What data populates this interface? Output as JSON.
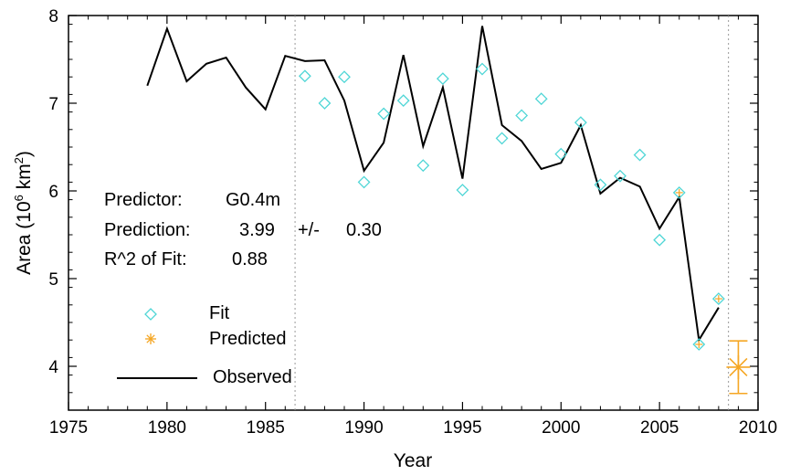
{
  "chart_data": {
    "type": "line",
    "xlabel": "Year",
    "ylabel": "Area (10",
    "ylabel_sup": "6",
    "ylabel_unit": " km",
    "ylabel_sup2": "2",
    "ylabel_close": ")",
    "xlim": [
      1975,
      2010
    ],
    "ylim": [
      3.5,
      8
    ],
    "xticks": [
      1975,
      1980,
      1985,
      1990,
      1995,
      2000,
      2005,
      2010
    ],
    "yticks": [
      4,
      5,
      6,
      7,
      8
    ],
    "vlines": [
      1986.5,
      2008.5
    ],
    "grid": false,
    "series": [
      {
        "name": "Observed",
        "kind": "line",
        "color": "#000000",
        "x": [
          1979,
          1980,
          1981,
          1982,
          1983,
          1984,
          1985,
          1986,
          1987,
          1988,
          1989,
          1990,
          1991,
          1992,
          1993,
          1994,
          1995,
          1996,
          1997,
          1998,
          1999,
          2000,
          2001,
          2002,
          2003,
          2004,
          2005,
          2006,
          2007,
          2008
        ],
        "y": [
          7.2,
          7.85,
          7.25,
          7.45,
          7.52,
          7.18,
          6.93,
          7.54,
          7.48,
          7.49,
          7.03,
          6.23,
          6.55,
          7.55,
          6.51,
          7.18,
          6.14,
          7.88,
          6.75,
          6.57,
          6.25,
          6.32,
          6.75,
          5.97,
          6.15,
          6.05,
          5.57,
          5.93,
          4.3,
          4.67
        ]
      },
      {
        "name": "Fit",
        "kind": "markers",
        "marker": "diamond",
        "color": "#4fd6d6",
        "x": [
          1987,
          1988,
          1989,
          1990,
          1991,
          1992,
          1993,
          1994,
          1995,
          1996,
          1997,
          1998,
          1999,
          2000,
          2001,
          2002,
          2003,
          2004,
          2005,
          2006,
          2007,
          2008
        ],
        "y": [
          7.31,
          7.0,
          7.3,
          6.1,
          6.88,
          7.03,
          6.29,
          7.28,
          6.01,
          7.39,
          6.6,
          6.86,
          7.05,
          6.42,
          6.78,
          6.07,
          6.17,
          6.41,
          5.44,
          5.98,
          4.25,
          4.77
        ]
      },
      {
        "name": "Predicted",
        "kind": "marker",
        "marker": "asterisk",
        "color": "#f5a623",
        "x": [
          2009
        ],
        "y": [
          3.99
        ],
        "err": 0.3
      }
    ],
    "fit_orange_years": [
      2006,
      2007,
      2008
    ],
    "legend": {
      "placement": "lower-left",
      "entries": [
        "Fit",
        "Predicted",
        "Observed"
      ]
    },
    "annotations": {
      "predictor_label": "Predictor:",
      "predictor_value": "G0.4m",
      "prediction_label": "Prediction:",
      "prediction_value": "3.99",
      "prediction_pm": "+/-",
      "prediction_err": "0.30",
      "r2_label": "R^2 of Fit:",
      "r2_value": "0.88"
    }
  }
}
